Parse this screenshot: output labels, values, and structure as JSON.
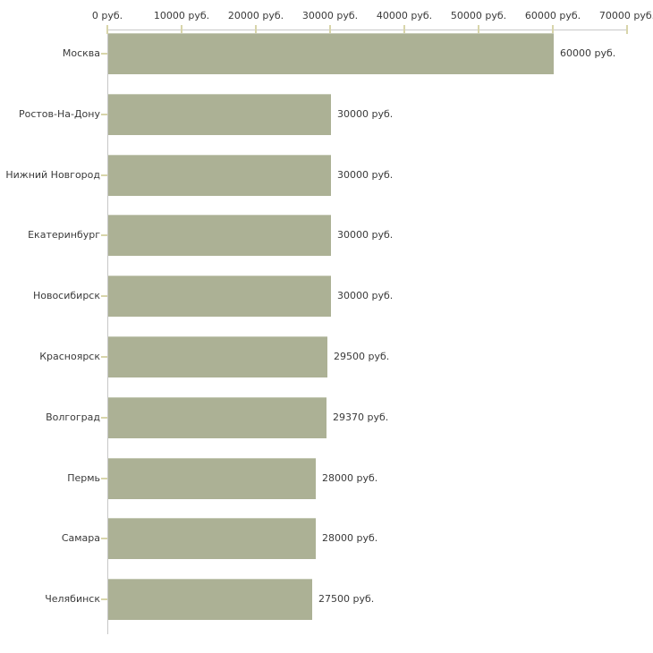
{
  "chart_data": {
    "type": "bar",
    "orientation": "horizontal",
    "title": "",
    "unit": "руб.",
    "categories": [
      "Москва",
      "Ростов-На-Дону",
      "Нижний Новгород",
      "Екатеринбург",
      "Новосибирск",
      "Красноярск",
      "Волгоград",
      "Пермь",
      "Самара",
      "Челябинск"
    ],
    "values": [
      60000,
      30000,
      30000,
      30000,
      30000,
      29500,
      29370,
      28000,
      28000,
      27500
    ],
    "value_labels": [
      "60000 руб.",
      "30000 руб.",
      "30000 руб.",
      "30000 руб.",
      "30000 руб.",
      "29500 руб.",
      "29370 руб.",
      "28000 руб.",
      "28000 руб.",
      "27500 руб."
    ],
    "x_axis": {
      "position": "top",
      "lim": [
        0,
        70000
      ],
      "ticks": [
        0,
        10000,
        20000,
        30000,
        40000,
        50000,
        60000,
        70000
      ],
      "tick_labels": [
        "0 руб.",
        "10000 руб.",
        "20000 руб.",
        "30000 руб.",
        "40000 руб.",
        "50000 руб.",
        "60000 руб.",
        "70000 руб."
      ]
    },
    "grid": false,
    "legend": false,
    "colors": {
      "bar": "#acb195",
      "bar_edge": "#c6cab6",
      "axis_line": "#c8c8c8",
      "tick_mark": "#d8d5aa",
      "text": "#3a3a3a",
      "background": "#ffffff"
    }
  }
}
